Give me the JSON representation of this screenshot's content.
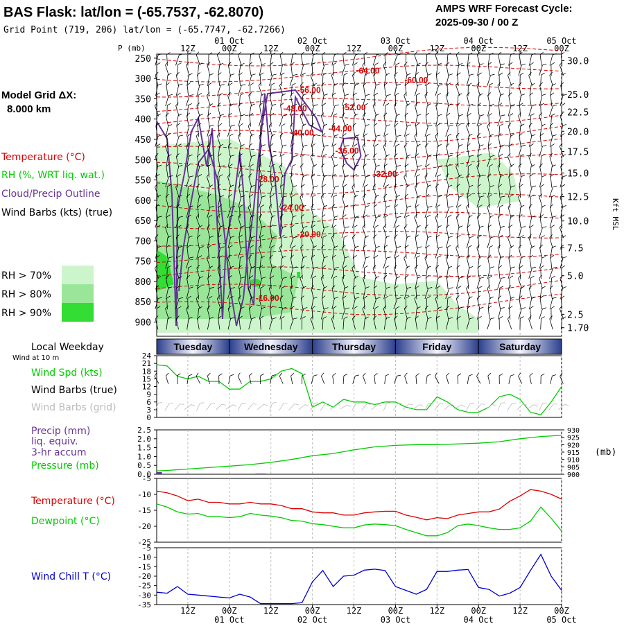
{
  "header": {
    "title": "BAS Flask:  lat/lon = (-65.7537, -62.8070)",
    "subtitle": "Grid Point (719, 206) lat/lon = (-65.7747, -62.7266)",
    "cycle_line1": "AMPS WRF Forecast Cycle:",
    "cycle_line2": "2025-09-30 / 00  Z"
  },
  "left_panel": {
    "model_grid_label": "Model Grid ΔX:",
    "model_grid_value": "8.000 km",
    "legend_temperature": "Temperature (°C)",
    "legend_rh": "RH (%, WRT liq. wat.)",
    "legend_cloud": "Cloud/Precip Outline",
    "legend_wind": "Wind Barbs (kts) (true)",
    "rh_keys": [
      {
        "label": "RH > 70%",
        "color": "#ccf5cc"
      },
      {
        "label": "RH > 80%",
        "color": "#99e699"
      },
      {
        "label": "RH > 90%",
        "color": "#33dd33"
      }
    ],
    "local_weekday": "Local Weekday",
    "wind_at_10m": "Wind at 10 m",
    "legend_wind_spd": "Wind Spd (kts)",
    "legend_wind_barbs_true": "Wind Barbs (true)",
    "legend_wind_barbs_grid": "Wind Barbs (grid)",
    "legend_precip_1": "Precip (mm)",
    "legend_precip_2": "liq. equiv.",
    "legend_precip_3": "3-hr accum",
    "legend_pressure": "Pressure (mb)",
    "legend_temp2": "Temperature (°C)",
    "legend_dew": "Dewpoint (°C)",
    "legend_windchill": "Wind Chill T (°C)"
  },
  "colors": {
    "temperature": "#dd0000",
    "dewpoint": "#00cc00",
    "cloud_outline": "#663399",
    "windchill": "#0000cc",
    "wind_speed": "#00cc00",
    "pressure": "#00cc00",
    "precip": "#663399",
    "grid_barbs": "#bbbbbb"
  },
  "chart_data": [
    {
      "type": "heatmap",
      "name": "cross_section",
      "p_label": "P (mb)",
      "kft_label": "Kft MSL",
      "x_ticks_top": [
        "12Z",
        "00Z",
        "12Z",
        "00Z",
        "12Z",
        "00Z",
        "12Z",
        "00Z",
        "12Z",
        "00Z"
      ],
      "x_hours_top": [
        12,
        24,
        36,
        48,
        60,
        72,
        84,
        96,
        108,
        120
      ],
      "date_labels_top": [
        {
          "text": "01 Oct",
          "hour": 24
        },
        {
          "text": "02 Oct",
          "hour": 48
        },
        {
          "text": "03 Oct",
          "hour": 72
        },
        {
          "text": "04 Oct",
          "hour": 96
        },
        {
          "text": "05 Oct",
          "hour": 120
        }
      ],
      "xlim_hours": [
        3,
        120
      ],
      "p_ticks": [
        "250",
        "300",
        "350",
        "400",
        "450",
        "500",
        "550",
        "600",
        "650",
        "700",
        "750",
        "800",
        "850",
        "900"
      ],
      "p_values": [
        250,
        300,
        350,
        400,
        450,
        500,
        550,
        600,
        650,
        700,
        750,
        800,
        850,
        900
      ],
      "ylim_mb": [
        240,
        935
      ],
      "kft_ticks": [
        {
          "label": "30.0",
          "p": 256
        },
        {
          "label": "25.0",
          "p": 339
        },
        {
          "label": "22.5",
          "p": 383
        },
        {
          "label": "20.0",
          "p": 430
        },
        {
          "label": "17.5",
          "p": 480
        },
        {
          "label": "15.0",
          "p": 533
        },
        {
          "label": "12.5",
          "p": 591
        },
        {
          "label": "10.0",
          "p": 651
        },
        {
          "label": "7.5",
          "p": 717
        },
        {
          "label": "5.0",
          "p": 786
        },
        {
          "label": "2.5",
          "p": 881
        },
        {
          "label": "1.70",
          "p": 914
        }
      ],
      "temp_labels": [
        {
          "text": "-64.00",
          "hour": 64,
          "p": 288
        },
        {
          "text": "-60.00",
          "hour": 78,
          "p": 311
        },
        {
          "text": "-56.00",
          "hour": 47,
          "p": 336
        },
        {
          "text": "-52.00",
          "hour": 60,
          "p": 378
        },
        {
          "text": "-48.00",
          "hour": 43,
          "p": 381
        },
        {
          "text": "-44.00",
          "hour": 56,
          "p": 430
        },
        {
          "text": "-40.00",
          "hour": 45,
          "p": 441
        },
        {
          "text": "-36.00",
          "hour": 58,
          "p": 485
        },
        {
          "text": "-32.00",
          "hour": 69,
          "p": 542
        },
        {
          "text": "-28.00",
          "hour": 35,
          "p": 555
        },
        {
          "text": "-24.00",
          "hour": 42,
          "p": 625
        },
        {
          "text": "-20.00",
          "hour": 47,
          "p": 691
        },
        {
          "text": "-16.00",
          "hour": 35,
          "p": 848
        }
      ]
    },
    {
      "type": "line",
      "name": "wind_speed",
      "weekdays": [
        {
          "label": "Tuesday",
          "start": 3,
          "end": 24
        },
        {
          "label": "Wednesday",
          "start": 24,
          "end": 48
        },
        {
          "label": "Thursday",
          "start": 48,
          "end": 72
        },
        {
          "label": "Friday",
          "start": 72,
          "end": 96
        },
        {
          "label": "Saturday",
          "start": 96,
          "end": 120
        }
      ],
      "y_ticks": [
        0,
        3,
        6,
        9,
        12,
        15,
        18,
        21,
        24
      ],
      "ylim": [
        0,
        24
      ],
      "x": [
        3,
        6,
        9,
        12,
        15,
        18,
        21,
        24,
        27,
        30,
        33,
        36,
        39,
        42,
        45,
        48,
        51,
        54,
        57,
        60,
        63,
        66,
        69,
        72,
        75,
        78,
        81,
        84,
        87,
        90,
        93,
        96,
        99,
        102,
        105,
        108,
        111,
        114,
        117,
        120
      ],
      "values": [
        20.5,
        20,
        16,
        15,
        16,
        14,
        14,
        11,
        11,
        14,
        14,
        15,
        18,
        19,
        17,
        4,
        6,
        4,
        7,
        6,
        6,
        5,
        6,
        6,
        4,
        3,
        3,
        8,
        6,
        3,
        2,
        2,
        4,
        8,
        9,
        7,
        2,
        1,
        6,
        12
      ],
      "series": [
        {
          "name": "Wind Spd (kts)",
          "values": [
            20.5,
            20,
            16,
            15,
            16,
            14,
            14,
            11,
            11,
            14,
            14,
            15,
            18,
            19,
            17,
            4,
            6,
            4,
            7,
            6,
            6,
            5,
            6,
            6,
            4,
            3,
            3,
            8,
            6,
            3,
            2,
            2,
            4,
            8,
            9,
            7,
            2,
            1,
            6,
            12
          ]
        }
      ]
    },
    {
      "type": "line",
      "name": "precip_pressure",
      "precip_ticks": [
        "0.0",
        "0.5",
        "1.0",
        "1.5",
        "2.0",
        "2.5"
      ],
      "precip_values": [
        0,
        0.5,
        1.0,
        1.5,
        2.0,
        2.5
      ],
      "precip_ylim": [
        0,
        2.5
      ],
      "pressure_ticks": [
        "900",
        "905",
        "910",
        "915",
        "920",
        "925",
        "930"
      ],
      "pressure_values": [
        900,
        905,
        910,
        915,
        920,
        925,
        930
      ],
      "pressure_ylim": [
        900,
        930
      ],
      "pressure_unit": "(mb)",
      "x": [
        3,
        6,
        12,
        18,
        24,
        30,
        36,
        42,
        48,
        54,
        60,
        66,
        72,
        78,
        84,
        90,
        96,
        102,
        108,
        114,
        120
      ],
      "pressure": [
        902.3,
        902.6,
        903.5,
        904.5,
        905.5,
        906.5,
        908,
        910,
        912.5,
        914,
        916.5,
        918.5,
        919.5,
        920,
        920,
        920.5,
        921,
        922,
        924,
        925.5,
        926.3
      ],
      "precip_bars": [
        {
          "hour": 3,
          "value": 0.12
        },
        {
          "hour": 33,
          "value": 0.04
        }
      ]
    },
    {
      "type": "line",
      "name": "temperature_dewpoint",
      "y_ticks": [
        -25,
        -20,
        -15,
        -10,
        -5
      ],
      "ylim": [
        -25,
        -5
      ],
      "x": [
        3,
        6,
        9,
        12,
        15,
        18,
        21,
        24,
        27,
        30,
        33,
        36,
        39,
        42,
        45,
        48,
        51,
        54,
        57,
        60,
        63,
        66,
        69,
        72,
        75,
        78,
        81,
        84,
        87,
        90,
        93,
        96,
        99,
        102,
        105,
        108,
        111,
        114,
        117,
        120
      ],
      "series": [
        {
          "name": "Temperature (°C)",
          "values": [
            -9,
            -9.5,
            -10.5,
            -12,
            -11.5,
            -12.5,
            -12.5,
            -13,
            -13,
            -12.5,
            -13,
            -13,
            -13.5,
            -14.5,
            -14.5,
            -15.5,
            -15.8,
            -15.8,
            -16.5,
            -16.5,
            -15.8,
            -15.5,
            -15.3,
            -15.3,
            -16.5,
            -17.2,
            -18,
            -17.3,
            -17.6,
            -16.5,
            -16,
            -15.5,
            -15.5,
            -14.6,
            -12.2,
            -10.5,
            -8.5,
            -9,
            -10,
            -11.5
          ]
        },
        {
          "name": "Dewpoint (°C)",
          "values": [
            -13,
            -14,
            -15.5,
            -16.2,
            -16,
            -17,
            -17,
            -17.3,
            -17,
            -16,
            -16.5,
            -16.8,
            -17.3,
            -18.2,
            -18.4,
            -19.2,
            -19.5,
            -20,
            -20.5,
            -20.5,
            -19.6,
            -19.3,
            -19.5,
            -19.8,
            -21,
            -22,
            -23,
            -23,
            -22,
            -19.8,
            -19.3,
            -19.8,
            -20.5,
            -21,
            -21,
            -20.5,
            -18.4,
            -14,
            -17.5,
            -21.5
          ]
        }
      ]
    },
    {
      "type": "line",
      "name": "wind_chill",
      "y_ticks": [
        -35,
        -30,
        -25,
        -20,
        -15,
        -10,
        -5
      ],
      "ylim": [
        -35,
        -5
      ],
      "x_ticks_bottom": [
        "12Z",
        "00Z",
        "12Z",
        "00Z",
        "12Z",
        "00Z",
        "12Z",
        "00Z",
        "12Z",
        "00Z"
      ],
      "date_labels_bottom": [
        "01 Oct",
        "02 Oct",
        "03 Oct",
        "04 Oct",
        "05 Oct"
      ],
      "x": [
        3,
        6,
        9,
        12,
        15,
        18,
        21,
        24,
        27,
        30,
        33,
        36,
        39,
        42,
        45,
        48,
        51,
        54,
        57,
        60,
        63,
        66,
        69,
        72,
        75,
        78,
        81,
        84,
        87,
        90,
        93,
        96,
        99,
        102,
        105,
        108,
        111,
        114,
        117,
        120
      ],
      "series": [
        {
          "name": "Wind Chill T (°C)",
          "values": [
            -28.5,
            -29,
            -25.5,
            -29.5,
            -30,
            -30.5,
            -31,
            -31.5,
            -29.5,
            -31,
            -34.5,
            -34.5,
            -34.5,
            -34.5,
            -34,
            -23,
            -17,
            -25.5,
            -20,
            -19.5,
            -16.8,
            -16.3,
            -17,
            -25.5,
            -27.5,
            -29.5,
            -27,
            -17.5,
            -17.5,
            -16.8,
            -16.5,
            -26,
            -27,
            -30.5,
            -29,
            -26,
            -17,
            -8.5,
            -20,
            -27.5
          ]
        }
      ]
    }
  ]
}
